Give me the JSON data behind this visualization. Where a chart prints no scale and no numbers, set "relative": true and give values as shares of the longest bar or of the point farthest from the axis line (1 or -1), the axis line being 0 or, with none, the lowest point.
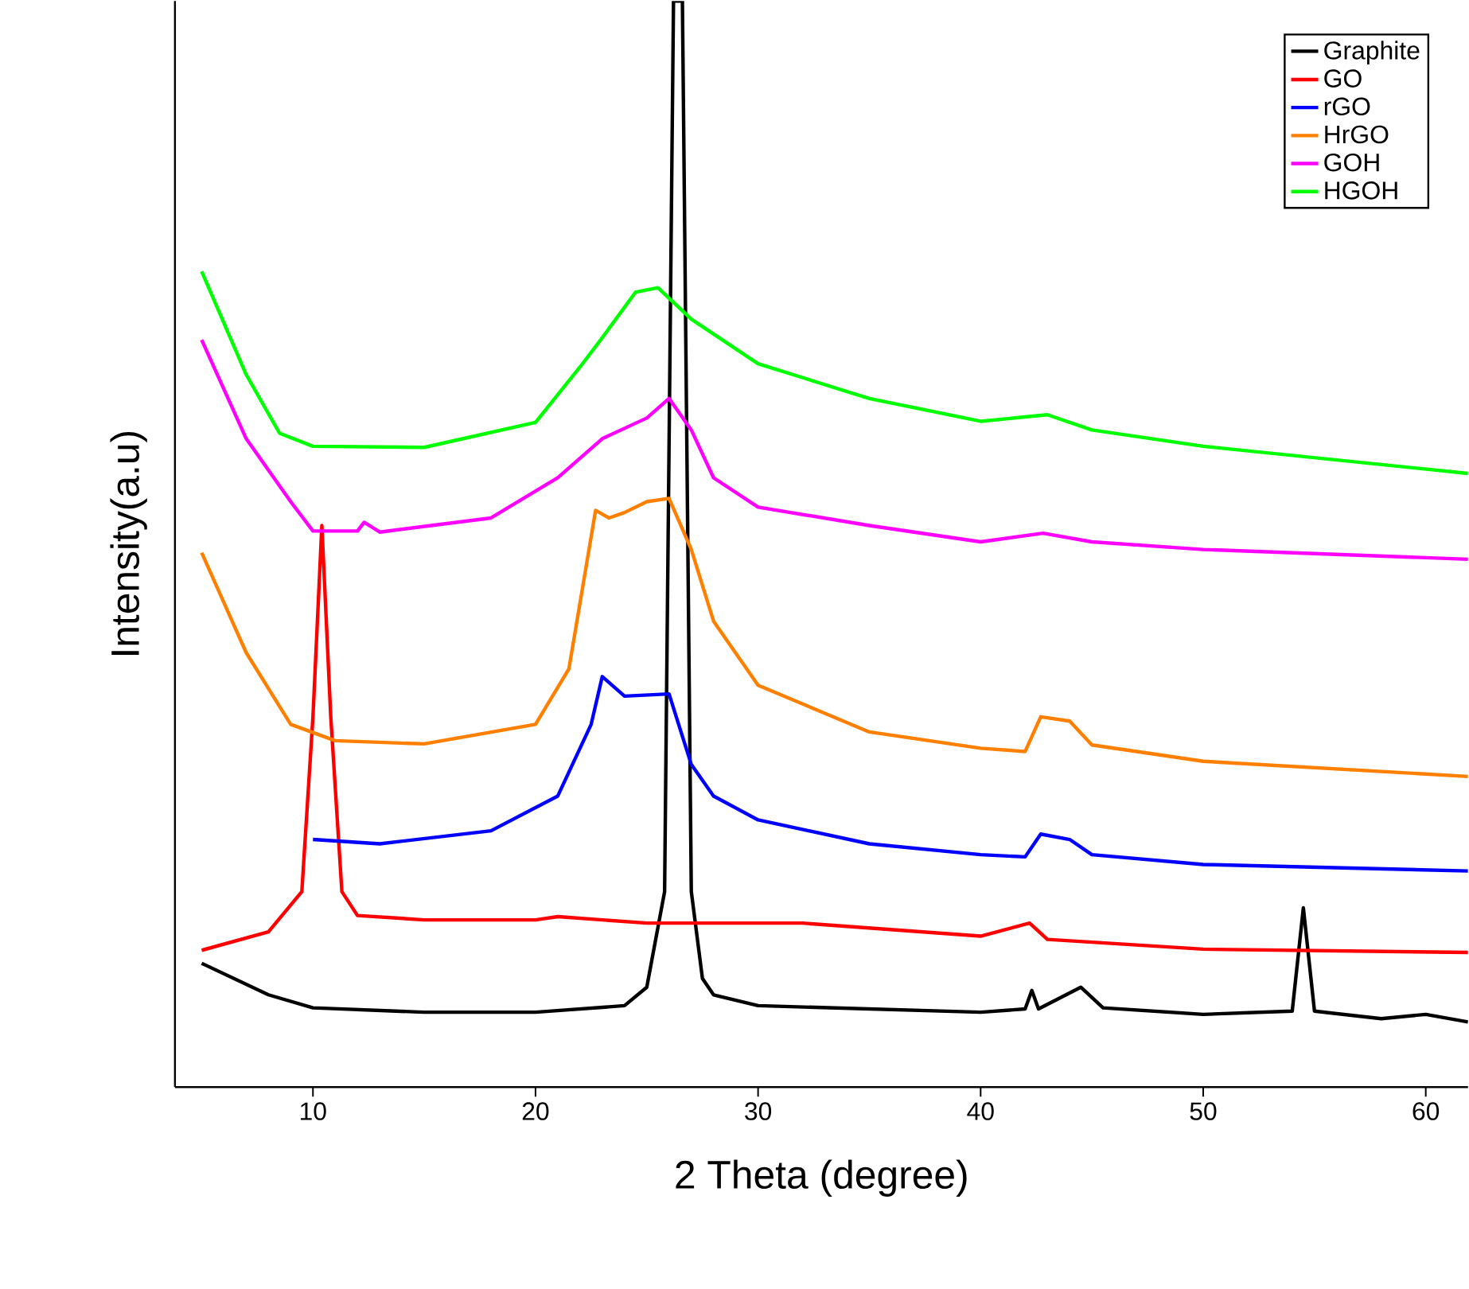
{
  "chart_data": {
    "type": "line",
    "relative": true,
    "xlabel": "2 Theta (degree)",
    "ylabel": "Intensity(a.u)",
    "xlim": [
      3.8,
      61.9
    ],
    "xticks": [
      10,
      20,
      30,
      40,
      50,
      60
    ],
    "legend": "top right",
    "grid": false,
    "marker": "none",
    "line_style": "solid",
    "series": [
      {
        "name": "Graphite",
        "color": "#000000",
        "x": [
          5,
          8,
          10,
          15,
          20,
          24,
          25,
          25.8,
          26.2,
          26.6,
          27,
          27.5,
          28,
          30,
          40,
          42,
          42.3,
          42.6,
          44.5,
          45.5,
          50,
          54,
          54.5,
          55,
          58,
          60,
          61.9
        ],
        "values": [
          0.114,
          0.085,
          0.073,
          0.069,
          0.069,
          0.075,
          0.092,
          0.18,
          1,
          1,
          0.18,
          0.1,
          0.085,
          0.075,
          0.069,
          0.072,
          0.089,
          0.072,
          0.092,
          0.073,
          0.067,
          0.07,
          0.165,
          0.07,
          0.063,
          0.067,
          0.06
        ]
      },
      {
        "name": "GO",
        "color": "#ff0000",
        "x": [
          5,
          8,
          9.5,
          10,
          10.4,
          10.8,
          11.3,
          12,
          15,
          20,
          21,
          25,
          32,
          40,
          42.2,
          43,
          50,
          61.9
        ],
        "values": [
          0.126,
          0.143,
          0.18,
          0.341,
          0.517,
          0.341,
          0.18,
          0.158,
          0.154,
          0.154,
          0.157,
          0.151,
          0.151,
          0.139,
          0.151,
          0.136,
          0.127,
          0.124
        ]
      },
      {
        "name": "rGO",
        "color": "#0000ff",
        "x": [
          10,
          13,
          18,
          21,
          22.5,
          23,
          24,
          26,
          27,
          28,
          30,
          35,
          40,
          42,
          42.7,
          44,
          45,
          50,
          61.9
        ],
        "values": [
          0.228,
          0.224,
          0.236,
          0.268,
          0.334,
          0.378,
          0.36,
          0.362,
          0.297,
          0.268,
          0.246,
          0.224,
          0.214,
          0.212,
          0.233,
          0.228,
          0.214,
          0.205,
          0.199
        ]
      },
      {
        "name": "HrGO",
        "color": "#ff8000",
        "x": [
          5,
          7,
          9,
          11,
          15,
          20,
          21.5,
          22.7,
          23.3,
          24,
          25,
          26,
          27,
          28,
          30,
          35,
          40,
          42,
          42.7,
          44,
          45,
          50,
          61.9
        ],
        "values": [
          0.492,
          0.4,
          0.334,
          0.319,
          0.316,
          0.334,
          0.385,
          0.531,
          0.524,
          0.529,
          0.539,
          0.542,
          0.495,
          0.429,
          0.37,
          0.327,
          0.312,
          0.309,
          0.341,
          0.337,
          0.315,
          0.3,
          0.286
        ]
      },
      {
        "name": "GOH",
        "color": "#ff00ff",
        "x": [
          5,
          7,
          9,
          10,
          12,
          12.3,
          13,
          18,
          21,
          23,
          25,
          26,
          27,
          28,
          30,
          35,
          40,
          42.8,
          45,
          50,
          61.9
        ],
        "values": [
          0.688,
          0.597,
          0.539,
          0.512,
          0.512,
          0.52,
          0.511,
          0.524,
          0.561,
          0.597,
          0.616,
          0.634,
          0.605,
          0.561,
          0.534,
          0.517,
          0.502,
          0.51,
          0.502,
          0.495,
          0.486
        ]
      },
      {
        "name": "HGOH",
        "color": "#00ff00",
        "x": [
          5,
          7,
          8.5,
          10,
          15,
          20,
          22,
          23,
          24.5,
          25.5,
          27,
          30,
          35,
          40,
          43,
          45,
          50,
          61.9
        ],
        "values": [
          0.751,
          0.656,
          0.602,
          0.59,
          0.589,
          0.612,
          0.663,
          0.69,
          0.732,
          0.736,
          0.707,
          0.666,
          0.634,
          0.613,
          0.619,
          0.605,
          0.59,
          0.565
        ]
      }
    ]
  }
}
